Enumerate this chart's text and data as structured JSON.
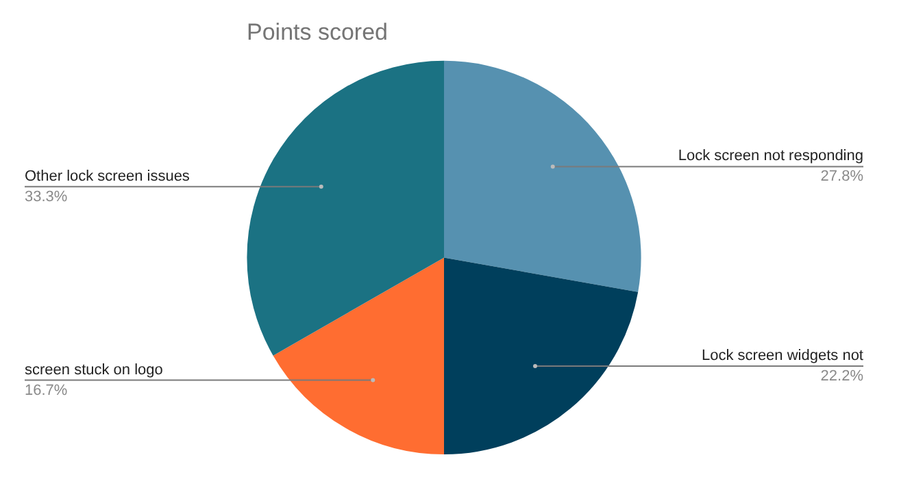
{
  "chart_data": {
    "type": "pie",
    "title": "Points scored",
    "categories": [
      "Lock screen not responding",
      "Lock screen widgets not",
      "screen stuck on logo",
      "Other lock screen issues"
    ],
    "values": [
      27.8,
      22.2,
      16.7,
      33.3
    ],
    "value_labels": [
      "27.8%",
      "22.2%",
      "16.7%",
      "33.3%"
    ],
    "colors": [
      "#5691b0",
      "#003f5c",
      "#ff6d31",
      "#1b7283"
    ],
    "legend": false
  }
}
